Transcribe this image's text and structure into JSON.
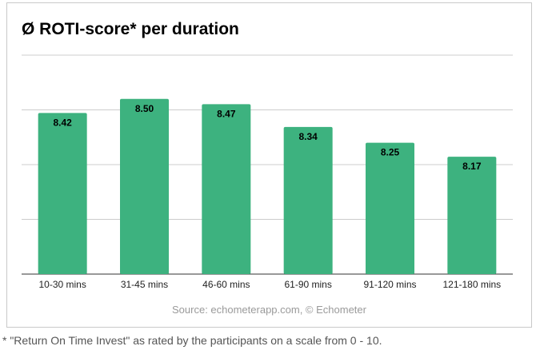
{
  "chart_data": {
    "type": "bar",
    "title": "Ø ROTI-score* per duration",
    "categories": [
      "10-30 mins",
      "31-45 mins",
      "46-60 mins",
      "61-90 mins",
      "91-120 mins",
      "121-180 mins"
    ],
    "values": [
      8.42,
      8.5,
      8.47,
      8.34,
      8.25,
      8.17
    ],
    "data_labels": [
      "8.42",
      "8.50",
      "8.47",
      "8.34",
      "8.25",
      "8.17"
    ],
    "xlabel": "",
    "ylabel": "",
    "ylim": [
      7.5,
      8.75
    ],
    "grid": true,
    "legend": "none",
    "bar_color": "#3db27f"
  },
  "source": "Source: echometerapp.com, © Echometer",
  "footnote": "* \"Return On Time Invest\" as rated by the participants on a scale from 0 - 10."
}
